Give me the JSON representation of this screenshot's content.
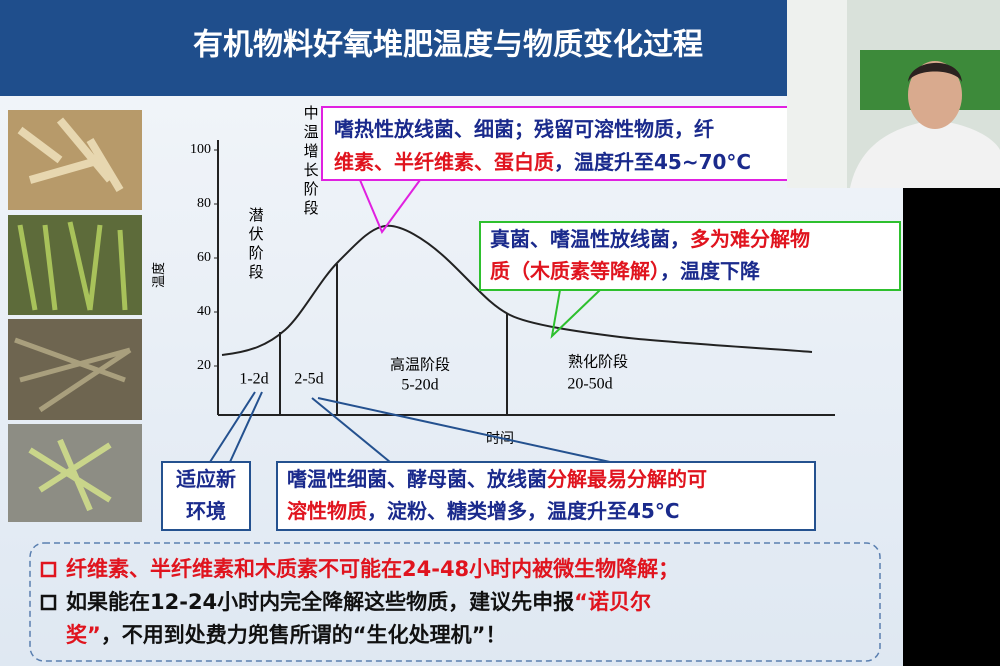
{
  "header": {
    "title": "有机物料好氧堆肥温度与物质变化过程"
  },
  "figure": {
    "y_label": "温度",
    "x_label": "时间",
    "yticks": [
      20,
      40,
      60,
      80,
      100
    ],
    "phases": [
      {
        "name": "潜伏阶段",
        "duration": "1-2d"
      },
      {
        "name": "中温增长阶段",
        "duration": "2-5d"
      },
      {
        "name": "高温阶段",
        "duration": "5-20d"
      },
      {
        "name": "熟化阶段",
        "duration": "20-50d"
      }
    ]
  },
  "callouts": [
    {
      "lines": [
        [
          {
            "text": "嗜热性放线菌、细菌；残留可溶性物质，纤",
            "color": "#1a2a8c"
          }
        ],
        [
          {
            "text": "维素、半纤维素、蛋白质",
            "color": "#e0141e"
          },
          {
            "text": "，温度升至45~70°C",
            "color": "#1a2a8c"
          }
        ]
      ]
    },
    {
      "lines": [
        [
          {
            "text": "真菌、嗜温性放线菌，",
            "color": "#1a2a8c"
          },
          {
            "text": "多为难分解物",
            "color": "#e0141e"
          }
        ],
        [
          {
            "text": "质（木质素等降解）",
            "color": "#e0141e"
          },
          {
            "text": "，温度下降",
            "color": "#1a2a8c"
          }
        ]
      ]
    },
    {
      "lines": [
        [
          {
            "text": "适应新",
            "color": "#1a2a8c"
          }
        ],
        [
          {
            "text": "环境",
            "color": "#1a2a8c"
          }
        ]
      ]
    },
    {
      "lines": [
        [
          {
            "text": "嗜温性细菌、酵母菌、放线菌",
            "color": "#1a2a8c"
          },
          {
            "text": "分解最易分解的可",
            "color": "#e0141e"
          }
        ],
        [
          {
            "text": "溶性物质",
            "color": "#e0141e"
          },
          {
            "text": "，淀粉、糖类增多，温度升至45°C",
            "color": "#1a2a8c"
          }
        ]
      ]
    }
  ],
  "notes": {
    "lines": [
      [
        {
          "text": "纤维素、半纤维素和木质素不可能在24-48小时内被微生物降解；",
          "color": "#e0141e"
        }
      ],
      [
        {
          "text": "如果能在12-24小时内完全降解这些物质，建议先申报",
          "color": "#111111"
        },
        {
          "text": "“诺贝尔",
          "color": "#e0141e"
        }
      ],
      [
        {
          "text": "奖”",
          "color": "#e0141e"
        },
        {
          "text": "，不用到处费力兜售所谓的“生化处理机”！",
          "color": "#111111"
        }
      ]
    ]
  }
}
